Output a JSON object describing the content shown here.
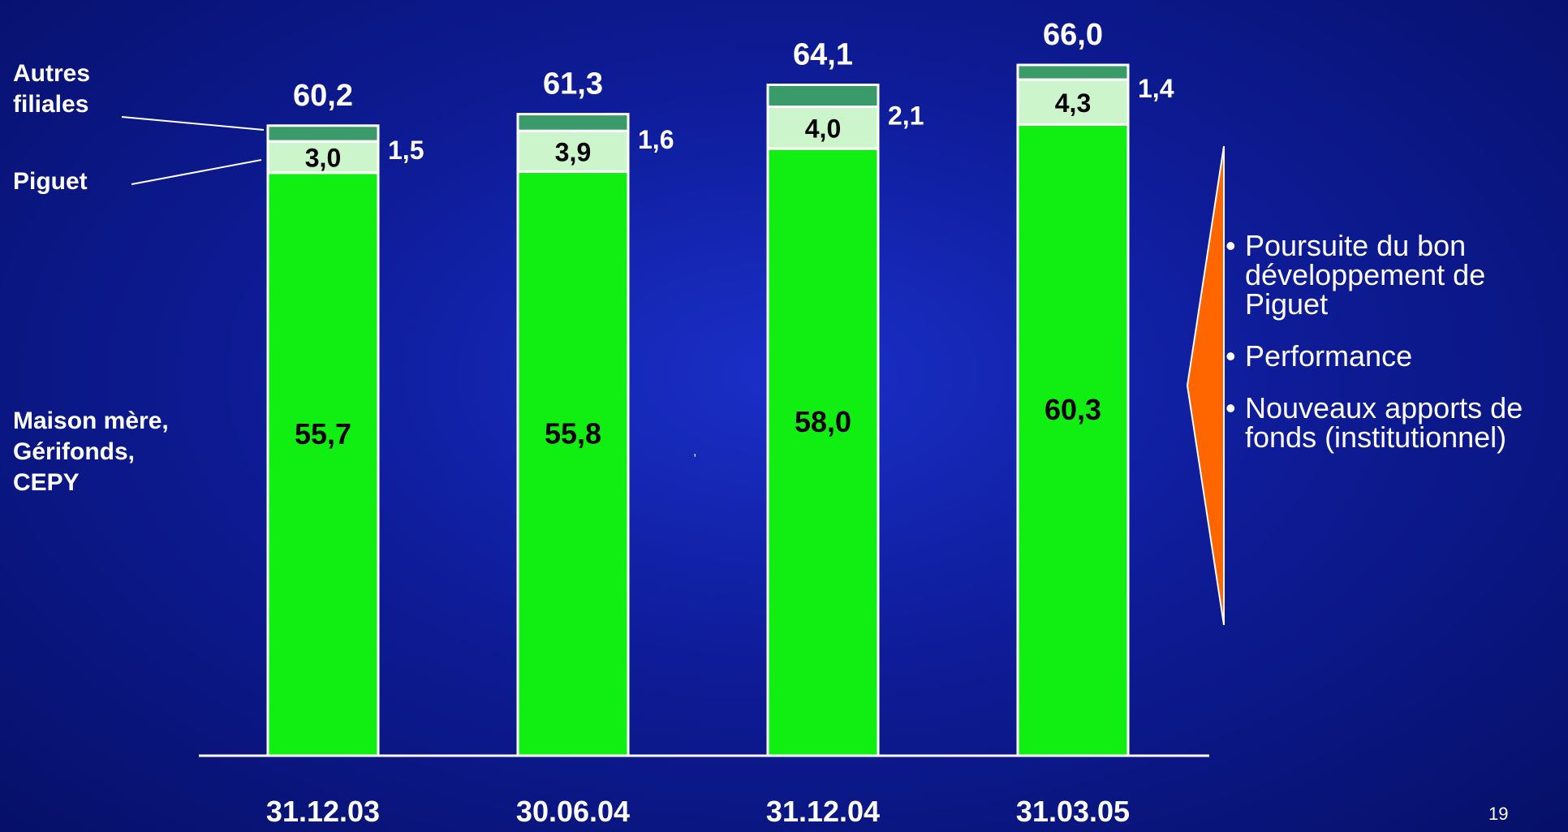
{
  "chart_data": {
    "type": "bar",
    "stacked": true,
    "categories": [
      "31.12.03",
      "30.06.04",
      "31.12.04",
      "31.03.05"
    ],
    "series": [
      {
        "name": "Maison mère, Gérifonds, CEPY",
        "values": [
          55.7,
          55.8,
          58.0,
          60.3
        ],
        "labels": [
          "55,7",
          "55,8",
          "58,0",
          "60,3"
        ],
        "color": "#11ee11"
      },
      {
        "name": "Piguet",
        "values": [
          3.0,
          3.9,
          4.0,
          4.3
        ],
        "labels": [
          "3,0",
          "3,9",
          "4,0",
          "4,3"
        ],
        "color": "#ccf5cc"
      },
      {
        "name": "Autres filiales",
        "values": [
          1.5,
          1.6,
          2.1,
          1.4
        ],
        "labels": [
          "1,5",
          "1,6",
          "2,1",
          "1,4"
        ],
        "color": "#3a9a6a"
      }
    ],
    "totals": [
      "60,2",
      "61,3",
      "64,1",
      "66,0"
    ],
    "ylim": [
      0,
      66
    ],
    "grid": false
  },
  "series_labels": {
    "autres_line1": "Autres",
    "autres_line2": "filiales",
    "piguet": "Piguet",
    "maison_line1": "Maison mère,",
    "maison_line2": "Gérifonds,",
    "maison_line3": "CEPY"
  },
  "bullets": [
    "Poursuite du bon développement de Piguet",
    "Performance",
    "Nouveaux apports de fonds (institutionnel)"
  ],
  "stray_mark": ",",
  "page_number": "19",
  "colors": {
    "background": "#0e1c98",
    "bar_bottom": "#11ee11",
    "bar_middle": "#ccf5cc",
    "bar_top": "#3a9a6a",
    "arrow": "#ff6600",
    "text": "#ffffff",
    "value_text": "#000000"
  }
}
